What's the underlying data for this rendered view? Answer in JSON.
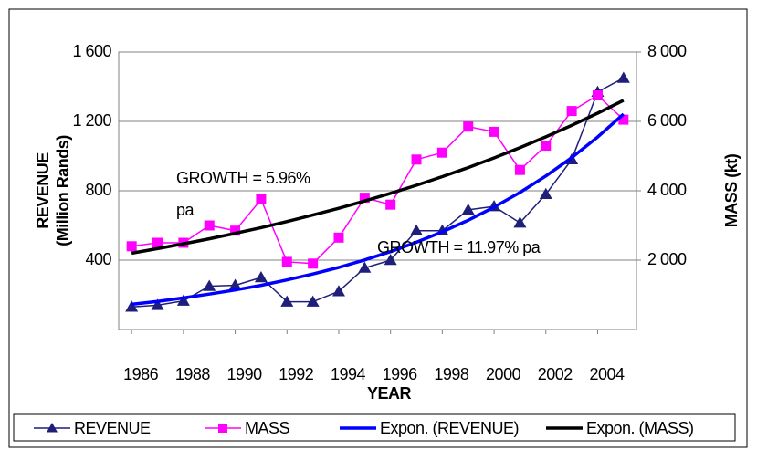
{
  "chart_data": {
    "type": "line",
    "x": [
      1986,
      1987,
      1988,
      1989,
      1990,
      1991,
      1992,
      1993,
      1994,
      1995,
      1996,
      1997,
      1998,
      1999,
      2000,
      2001,
      2002,
      2003,
      2004,
      2005
    ],
    "xlim": [
      1985.5,
      2005.5
    ],
    "xticks": [
      1986,
      1988,
      1990,
      1992,
      1994,
      1996,
      1998,
      2000,
      2002,
      2004
    ],
    "x_label": "YEAR",
    "y_label": [
      "REVENUE",
      "(Million Rands)"
    ],
    "y2_label": "MASS (kt)",
    "ylim": [
      0,
      1600
    ],
    "yticks": [
      400,
      800,
      {
        "value": 1200,
        "label": "1 200"
      },
      {
        "value": 1600,
        "label": "1 600"
      }
    ],
    "y2lim": [
      0,
      8000
    ],
    "y2ticks": [
      {
        "value": 2000,
        "label": "2 000"
      },
      {
        "value": 4000,
        "label": "4 000"
      },
      {
        "value": 6000,
        "label": "6 000"
      },
      {
        "value": 8000,
        "label": "8 000"
      }
    ],
    "grid": true,
    "legend": "bottom",
    "annotations": [
      "GROWTH = 5.96%",
      "pa",
      "GROWTH = 11.97% pa"
    ],
    "series": [
      {
        "name": "REVENUE",
        "color": "#1f1f7a",
        "marker": "triangle",
        "width": 1.5,
        "values": [
          130,
          140,
          165,
          250,
          255,
          300,
          160,
          160,
          220,
          355,
          400,
          570,
          570,
          690,
          710,
          615,
          780,
          980,
          1370,
          1450
        ]
      },
      {
        "name": "MASS",
        "color": "#ff00ff",
        "marker": "square",
        "width": 1.5,
        "axis": "y2",
        "values": [
          2400,
          2500,
          2500,
          3000,
          2850,
          3750,
          1950,
          1900,
          2650,
          3800,
          3600,
          4900,
          5100,
          5850,
          5700,
          4600,
          5300,
          6300,
          6750,
          6050
        ]
      },
      {
        "name": "Expon. (REVENUE)",
        "color": "#0000ff",
        "width": 3.5,
        "values": [
          145,
          162,
          182,
          204,
          228,
          255,
          286,
          320,
          358,
          401,
          449,
          503,
          563,
          630,
          706,
          790,
          885,
          991,
          1110,
          1242
        ]
      },
      {
        "name": "Expon. (MASS)",
        "color": "#000000",
        "width": 3.5,
        "axis": "y2",
        "values": [
          2200,
          2331,
          2470,
          2617,
          2773,
          2938,
          3113,
          3299,
          3496,
          3704,
          3925,
          4159,
          4407,
          4669,
          4948,
          5243,
          5555,
          5886,
          6237,
          6609
        ]
      }
    ]
  }
}
